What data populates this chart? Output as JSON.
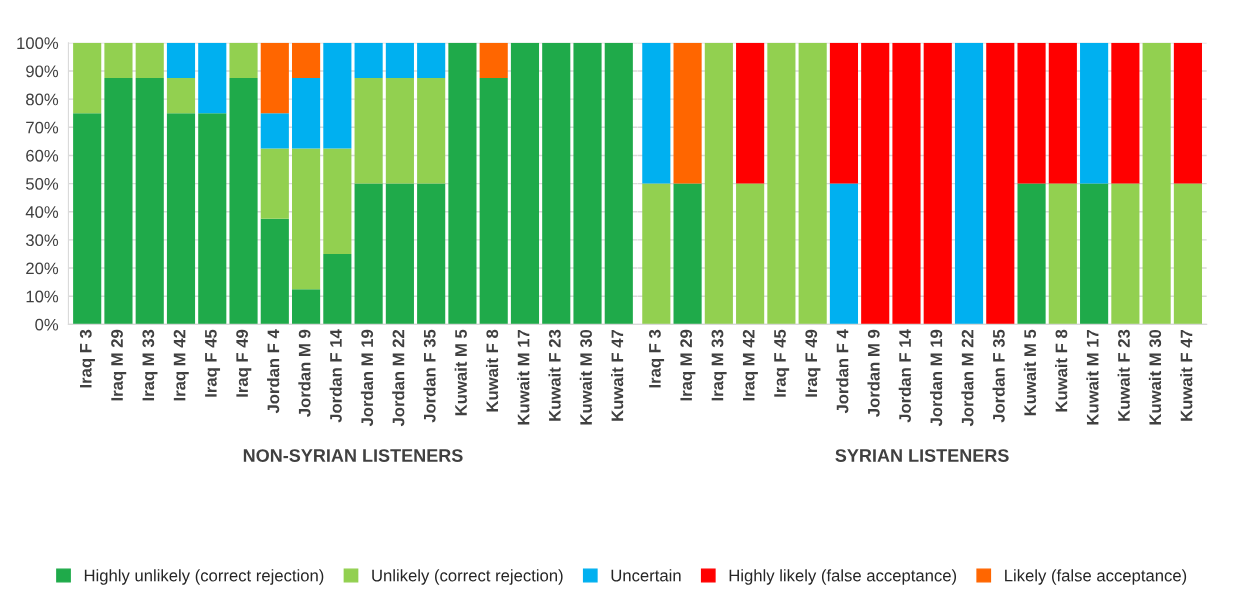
{
  "chart_data": [
    {
      "type": "bar",
      "stacked": true,
      "xlabel": "NON-SYRIAN LISTENERS",
      "categories": [
        "Iraq F 3",
        "Iraq M 29",
        "Iraq M 33",
        "Iraq M 42",
        "Iraq F 45",
        "Iraq F 49",
        "Jordan F 4",
        "Jordan M 9",
        "Jordan F 14",
        "Jordan M 19",
        "Jordan M 22",
        "Jordan F 35",
        "Kuwait M 5",
        "Kuwait F 8",
        "Kuwait M 17",
        "Kuwait F 23",
        "Kuwait M 30",
        "Kuwait F 47"
      ],
      "series": [
        {
          "color": "#1faa4a",
          "values": [
            75,
            87.5,
            87.5,
            75,
            75,
            87.5,
            37.5,
            12.5,
            25,
            50,
            50,
            50,
            100,
            87.5,
            100,
            100,
            100,
            100
          ]
        },
        {
          "color": "#92d050",
          "values": [
            25,
            12.5,
            12.5,
            12.5,
            0,
            12.5,
            25,
            50,
            37.5,
            37.5,
            37.5,
            37.5,
            0,
            0,
            0,
            0,
            0,
            0
          ]
        },
        {
          "color": "#00b0f0",
          "values": [
            0,
            0,
            0,
            12.5,
            25,
            0,
            12.5,
            25,
            37.5,
            12.5,
            12.5,
            12.5,
            0,
            0,
            0,
            0,
            0,
            0
          ]
        },
        {
          "color": "#ff0000",
          "values": [
            0,
            0,
            0,
            0,
            0,
            0,
            0,
            0,
            0,
            0,
            0,
            0,
            0,
            0,
            0,
            0,
            0,
            0
          ]
        },
        {
          "color": "#ff6600",
          "values": [
            0,
            0,
            0,
            0,
            0,
            0,
            25,
            12.5,
            0,
            0,
            0,
            0,
            0,
            12.5,
            0,
            0,
            0,
            0
          ]
        }
      ],
      "ylim": [
        0,
        100
      ],
      "yticks": [
        {
          "value": 0,
          "label": "0%"
        },
        {
          "value": 10,
          "label": "10%"
        },
        {
          "value": 20,
          "label": "20%"
        },
        {
          "value": 30,
          "label": "30%"
        },
        {
          "value": 40,
          "label": "40%"
        },
        {
          "value": 50,
          "label": "50%"
        },
        {
          "value": 60,
          "label": "60%"
        },
        {
          "value": 70,
          "label": "70%"
        },
        {
          "value": 80,
          "label": "80%"
        },
        {
          "value": 90,
          "label": "90%"
        },
        {
          "value": 100,
          "label": "100%"
        }
      ],
      "grid": "y"
    },
    {
      "type": "bar",
      "stacked": true,
      "xlabel": "SYRIAN LISTENERS",
      "categories": [
        "Iraq F 3",
        "Iraq M 29",
        "Iraq M 33",
        "Iraq M 42",
        "Iraq F 45",
        "Iraq F 49",
        "Jordan F 4",
        "Jordan M 9",
        "Jordan F 14",
        "Jordan M 19",
        "Jordan M 22",
        "Jordan F 35",
        "Kuwait M 5",
        "Kuwait F 8",
        "Kuwait M 17",
        "Kuwait F 23",
        "Kuwait M 30",
        "Kuwait F 47"
      ],
      "series": [
        {
          "name": "Highly unlikely (correct rejection)",
          "color": "#1faa4a",
          "values": [
            0,
            50,
            0,
            0,
            0,
            0,
            0,
            0,
            0,
            0,
            0,
            0,
            50,
            0,
            50,
            0,
            0,
            0
          ]
        },
        {
          "name": "Unlikely (correct rejection)",
          "color": "#92d050",
          "values": [
            50,
            0,
            100,
            50,
            100,
            100,
            0,
            0,
            0,
            0,
            0,
            0,
            0,
            50,
            0,
            50,
            100,
            50
          ]
        },
        {
          "name": "Uncertain",
          "color": "#00b0f0",
          "values": [
            50,
            0,
            0,
            0,
            0,
            0,
            50,
            0,
            0,
            0,
            100,
            0,
            0,
            0,
            50,
            0,
            0,
            0
          ]
        },
        {
          "name": "Highly likely (false acceptance)",
          "color": "#ff0000",
          "values": [
            0,
            0,
            0,
            50,
            0,
            0,
            50,
            100,
            100,
            100,
            0,
            100,
            50,
            50,
            0,
            50,
            0,
            50
          ]
        },
        {
          "name": "Likely (false acceptance)",
          "color": "#ff6600",
          "values": [
            0,
            50,
            0,
            0,
            0,
            0,
            0,
            0,
            0,
            0,
            0,
            0,
            0,
            0,
            0,
            0,
            0,
            0
          ]
        }
      ],
      "ylim": [
        0,
        100
      ],
      "tick_labels": "x",
      "grid": "y",
      "legend": "bottom"
    }
  ]
}
